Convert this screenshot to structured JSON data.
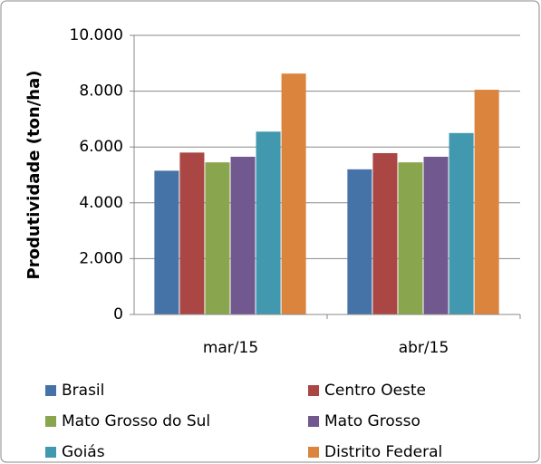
{
  "chart_data": {
    "type": "bar",
    "y_label": "Produtividade (ton/ha)",
    "categories": [
      "mar/15",
      "abr/15"
    ],
    "series": [
      {
        "name": "Brasil",
        "color": "#4572A7",
        "values": [
          5150,
          5200
        ]
      },
      {
        "name": "Centro Oeste",
        "color": "#AA4643",
        "values": [
          5800,
          5780
        ]
      },
      {
        "name": "Mato Grosso do Sul",
        "color": "#89A54E",
        "values": [
          5450,
          5450
        ]
      },
      {
        "name": "Mato Grosso",
        "color": "#71588F",
        "values": [
          5650,
          5650
        ]
      },
      {
        "name": "Goiás",
        "color": "#4198AF",
        "values": [
          6550,
          6500
        ]
      },
      {
        "name": "Distrito Federal",
        "color": "#DB843D",
        "values": [
          8630,
          8050
        ]
      }
    ],
    "ylim": [
      0,
      10000
    ],
    "yticks": [
      0,
      {
        "value": 2000,
        "label": "2.000"
      },
      {
        "value": 4000,
        "label": "4.000"
      },
      {
        "value": 6000,
        "label": "6.000"
      },
      {
        "value": 8000,
        "label": "8.000"
      },
      {
        "value": 10000,
        "label": "10.000"
      }
    ],
    "grid": true,
    "legend": "bottom"
  }
}
